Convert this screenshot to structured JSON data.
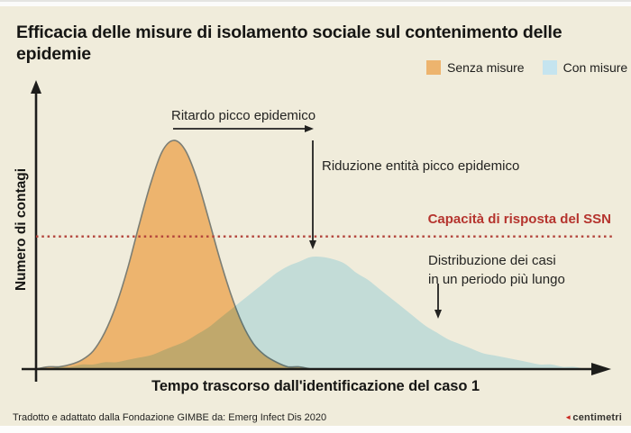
{
  "title": "Efficacia delle misure di isolamento sociale sul contenimento delle epidemie",
  "legend": {
    "items": [
      {
        "label": "Senza misure",
        "color": "#edb46e"
      },
      {
        "label": "Con misure",
        "color": "#c5e4ef"
      }
    ]
  },
  "axes": {
    "y_label": "Numero di contagi",
    "x_label": "Tempo trascorso dall'identificazione del caso 1"
  },
  "annotations": {
    "peak_delay": "Ritardo picco epidemico",
    "peak_reduction": "Riduzione entità picco epidemico",
    "capacity": "Capacità di risposta del SSN",
    "distribution_line1": "Distribuzione dei casi",
    "distribution_line2": "in un periodo più lungo"
  },
  "footer": {
    "source": "Tradotto e adattato dalla Fondazione GIMBE da: Emerg Infect Dis 2020",
    "credit_mark": "◄",
    "credit": "centimetri"
  },
  "colors": {
    "background": "#f0ecdb",
    "senza_misure": "#edb46e",
    "con_misure": "#cfeefb",
    "overlap": "#b3a269",
    "capacity_red": "#b5342e",
    "axis": "#1d1d1b"
  },
  "chart_data": {
    "type": "area",
    "title": "Efficacia delle misure di isolamento sociale sul contenimento delle epidemie",
    "xlabel": "Tempo trascorso dall'identificazione del caso 1",
    "ylabel": "Numero di contagi",
    "x_units": "tempo (unità arbitrarie 0–100, nessuna tacca visibile)",
    "y_units": "contagi normalizzati al picco senza misure (nessuna tacca visibile)",
    "grid": false,
    "legend_position": "top-right",
    "xlim": [
      0,
      100
    ],
    "ylim": [
      0,
      1.25
    ],
    "x": [
      0,
      2,
      4,
      6,
      8,
      10,
      12,
      14,
      16,
      18,
      20,
      22,
      24,
      26,
      28,
      30,
      32,
      34,
      36,
      38,
      40,
      42,
      44,
      46,
      48,
      50,
      52,
      54,
      56,
      58,
      60,
      62,
      64,
      66,
      68,
      70,
      72,
      74,
      76,
      78,
      80,
      82,
      84,
      86,
      88,
      90,
      92,
      94,
      96,
      98,
      100
    ],
    "series": [
      {
        "name": "Senza misure",
        "color": "#edb46e",
        "values": [
          0,
          0.01,
          0.01,
          0.02,
          0.04,
          0.08,
          0.16,
          0.28,
          0.44,
          0.63,
          0.81,
          0.95,
          1.0,
          0.96,
          0.84,
          0.67,
          0.49,
          0.33,
          0.2,
          0.11,
          0.06,
          0.03,
          0.01,
          0.01,
          0,
          0,
          0,
          0,
          0,
          0,
          0,
          0,
          0,
          0,
          0,
          0,
          0,
          0,
          0,
          0,
          0,
          0,
          0,
          0,
          0,
          0,
          0,
          0,
          0,
          0,
          0
        ]
      },
      {
        "name": "Con misure",
        "color": "#c5e4ef",
        "values": [
          0,
          0,
          0.01,
          0.01,
          0.02,
          0.02,
          0.03,
          0.03,
          0.04,
          0.05,
          0.06,
          0.08,
          0.1,
          0.12,
          0.15,
          0.18,
          0.22,
          0.26,
          0.3,
          0.34,
          0.38,
          0.42,
          0.45,
          0.47,
          0.49,
          0.49,
          0.48,
          0.46,
          0.42,
          0.39,
          0.35,
          0.31,
          0.27,
          0.23,
          0.19,
          0.16,
          0.13,
          0.11,
          0.09,
          0.07,
          0.06,
          0.05,
          0.04,
          0.03,
          0.02,
          0.02,
          0.01,
          0.01,
          0,
          0,
          0
        ]
      }
    ],
    "threshold": {
      "label": "Capacità di risposta del SSN",
      "value": 0.58,
      "color": "#b5342e",
      "style": "dotted"
    },
    "annotations": [
      {
        "text": "Ritardo picco epidemico",
        "arrow": "horizontal, from peak senza misure to peak con misure"
      },
      {
        "text": "Riduzione entità picco epidemico",
        "arrow": "vertical, down to peak con misure"
      },
      {
        "text": "Distribuzione dei casi in un periodo più lungo",
        "arrow": "down into con-misure tail"
      }
    ]
  }
}
